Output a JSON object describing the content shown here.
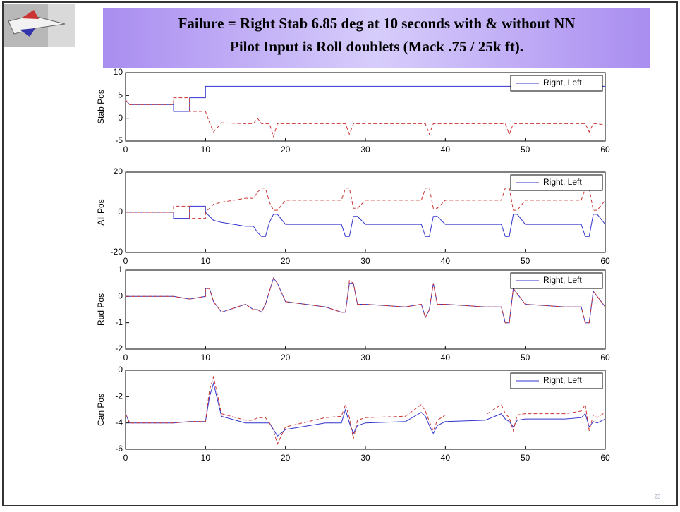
{
  "slide": {
    "title": [
      "Failure = Right Stab 6.85 deg at 10 seconds with & without NN",
      "Pilot Input is Roll doublets (Mack .75 / 25k ft)."
    ],
    "page_number": "23"
  },
  "chart_data": [
    {
      "type": "line",
      "ylabel": "Stab Pos",
      "xlim": [
        0,
        60
      ],
      "ylim": [
        -5,
        10
      ],
      "xticks": [
        0,
        10,
        20,
        30,
        40,
        50,
        60
      ],
      "yticks": [
        -5,
        0,
        5,
        10
      ],
      "legend": "upper right",
      "x": [
        0,
        0.5,
        6,
        6,
        8,
        8,
        10,
        10,
        10.5,
        11,
        12,
        15,
        16,
        16.5,
        17,
        17.5,
        18,
        18.5,
        19,
        20,
        25,
        27,
        27.5,
        28,
        28.5,
        29,
        30,
        35,
        37,
        37.5,
        38,
        38.5,
        39,
        40,
        45,
        47,
        47.5,
        48,
        48.5,
        49,
        50,
        55,
        57,
        57.5,
        58,
        58.5,
        59,
        60
      ],
      "series": [
        {
          "name": "Right, Left",
          "color": "#3333cc",
          "dashed": false,
          "values": [
            4,
            3,
            3,
            1.5,
            1.5,
            4.5,
            4.5,
            7,
            7,
            7,
            7,
            7,
            7,
            7,
            7,
            7,
            7,
            7,
            7,
            7,
            7,
            7,
            7,
            7,
            7,
            7,
            7,
            7,
            7,
            7,
            7,
            7,
            7,
            7,
            7,
            7,
            7,
            7,
            7,
            7,
            7,
            7,
            7,
            7,
            7,
            7,
            7,
            7
          ]
        },
        {
          "color": "#cc3333",
          "dashed": true,
          "values": [
            4,
            3,
            3,
            4.5,
            4.5,
            1.5,
            1.5,
            1.5,
            -1,
            -3,
            -1,
            -1.2,
            -1.2,
            0,
            -1.2,
            -1.2,
            -1.2,
            -4,
            -1.2,
            -1.2,
            -1.2,
            -1.2,
            -1.2,
            -3.5,
            -1.2,
            -1.2,
            -1.2,
            -1.2,
            -1.2,
            -1.2,
            -3.5,
            -1.2,
            -1.2,
            -1.2,
            -1.2,
            -1.2,
            -1.2,
            -3.5,
            -1.2,
            -1.2,
            -1.2,
            -1.2,
            -1.2,
            -1.2,
            -3,
            -1.2,
            -1.2,
            -1.5
          ]
        }
      ]
    },
    {
      "type": "line",
      "ylabel": "Ail Pos",
      "xlim": [
        0,
        60
      ],
      "ylim": [
        -20,
        20
      ],
      "xticks": [
        0,
        10,
        20,
        30,
        40,
        50,
        60
      ],
      "yticks": [
        -20,
        0,
        20
      ],
      "legend": "upper right",
      "x": [
        0,
        0.5,
        6,
        6,
        8,
        8,
        10,
        10,
        10.5,
        11,
        12,
        15,
        16,
        16.5,
        17,
        17.5,
        18,
        18.5,
        19,
        20,
        25,
        27,
        27.5,
        28,
        28.5,
        29,
        30,
        35,
        37,
        37.5,
        38,
        38.5,
        39,
        40,
        45,
        47,
        47.5,
        48,
        48.5,
        49,
        50,
        55,
        57,
        57.5,
        58,
        58.5,
        59,
        60
      ],
      "series": [
        {
          "name": "Right, Left",
          "color": "#3333cc",
          "dashed": false,
          "values": [
            0,
            0,
            0,
            -3,
            -3,
            3,
            3,
            0,
            -2,
            -4,
            -5,
            -7,
            -7,
            -10,
            -12,
            -12,
            -5,
            -1,
            -1,
            -6,
            -6,
            -6,
            -12,
            -12,
            -2,
            -2,
            -6,
            -6,
            -6,
            -12,
            -12,
            -2,
            -2,
            -6,
            -6,
            -6,
            -12,
            -12,
            -1,
            -1,
            -6,
            -6,
            -6,
            -12,
            -12,
            -1,
            -1,
            -6
          ]
        },
        {
          "color": "#cc3333",
          "dashed": true,
          "values": [
            0,
            0,
            0,
            3,
            3,
            -3,
            -3,
            0,
            2,
            4,
            5,
            7,
            7,
            10,
            12,
            12,
            5,
            1,
            1,
            6,
            6,
            6,
            12,
            12,
            2,
            2,
            6,
            6,
            6,
            12,
            12,
            2,
            2,
            6,
            6,
            6,
            12,
            12,
            1,
            1,
            6,
            6,
            6,
            12,
            12,
            1,
            1,
            6
          ]
        }
      ]
    },
    {
      "type": "line",
      "ylabel": "Rud Pos",
      "xlim": [
        0,
        60
      ],
      "ylim": [
        -2,
        1
      ],
      "xticks": [
        0,
        10,
        20,
        30,
        40,
        50,
        60
      ],
      "yticks": [
        -2,
        -1,
        0,
        1
      ],
      "legend": "upper right",
      "x": [
        0,
        0.5,
        6,
        6,
        8,
        8,
        10,
        10,
        10.5,
        11,
        12,
        15,
        16,
        16.5,
        17,
        17.5,
        18,
        18.5,
        19,
        20,
        25,
        27,
        27.5,
        28,
        28.5,
        29,
        30,
        35,
        37,
        37.5,
        38,
        38.5,
        39,
        40,
        45,
        47,
        47.5,
        48,
        48.5,
        49,
        50,
        55,
        57,
        57.5,
        58,
        58.5,
        59,
        60
      ],
      "series": [
        {
          "name": "Right, Left",
          "color": "#3333cc",
          "dashed": false,
          "values": [
            0,
            0,
            0,
            0,
            -0.1,
            -0.1,
            0,
            0.3,
            0.3,
            -0.2,
            -0.6,
            -0.3,
            -0.5,
            -0.5,
            -0.6,
            -0.3,
            0.2,
            0.7,
            0.5,
            -0.2,
            -0.4,
            -0.6,
            -0.6,
            0.5,
            0.5,
            -0.3,
            -0.3,
            -0.4,
            -0.3,
            -0.8,
            -0.5,
            0.5,
            -0.3,
            -0.3,
            -0.4,
            -0.4,
            -1,
            -1,
            0.3,
            0.1,
            -0.3,
            -0.4,
            -0.4,
            -1,
            -1,
            0.2,
            0,
            -0.4
          ]
        },
        {
          "color": "#cc3333",
          "dashed": true,
          "values": [
            0,
            0,
            0,
            0,
            -0.1,
            -0.1,
            0,
            0.3,
            0.3,
            -0.2,
            -0.6,
            -0.3,
            -0.5,
            -0.5,
            -0.6,
            -0.3,
            0.2,
            0.7,
            0.5,
            -0.2,
            -0.4,
            -0.6,
            -0.6,
            0.6,
            0.5,
            -0.3,
            -0.3,
            -0.4,
            -0.3,
            -0.8,
            -0.5,
            0.5,
            -0.3,
            -0.3,
            -0.4,
            -0.4,
            -1,
            -1,
            0.3,
            0.1,
            -0.3,
            -0.4,
            -0.4,
            -1,
            -1,
            0.2,
            0,
            -0.4
          ]
        }
      ]
    },
    {
      "type": "line",
      "ylabel": "Can Pos",
      "xlim": [
        0,
        60
      ],
      "ylim": [
        -6,
        0
      ],
      "xticks": [
        0,
        10,
        20,
        30,
        40,
        50,
        60
      ],
      "yticks": [
        -6,
        -4,
        -2,
        0
      ],
      "legend": "upper right",
      "x": [
        0,
        0.5,
        6,
        6,
        8,
        8,
        10,
        10,
        10.5,
        11,
        12,
        15,
        16,
        16.5,
        17,
        17.5,
        18,
        18.5,
        19,
        20,
        25,
        27,
        27.5,
        28,
        28.5,
        29,
        30,
        35,
        37,
        37.5,
        38,
        38.5,
        39,
        40,
        45,
        47,
        47.5,
        48,
        48.5,
        49,
        50,
        55,
        57,
        57.5,
        58,
        58.5,
        59,
        60
      ],
      "series": [
        {
          "name": "Right, Left",
          "color": "#3333cc",
          "dashed": false,
          "values": [
            -3.3,
            -4,
            -4,
            -4,
            -3.9,
            -3.9,
            -3.9,
            -3.9,
            -2,
            -1,
            -3.5,
            -4,
            -4,
            -4,
            -4,
            -4,
            -4,
            -4.5,
            -5,
            -4.5,
            -4,
            -4,
            -3,
            -4,
            -4.8,
            -4.2,
            -4,
            -3.9,
            -3.2,
            -3.5,
            -4.2,
            -4.8,
            -4.2,
            -3.9,
            -3.8,
            -3.3,
            -3.7,
            -3.9,
            -4.3,
            -3.8,
            -3.7,
            -3.7,
            -3.6,
            -3.3,
            -4.3,
            -3.9,
            -4,
            -3.7
          ]
        },
        {
          "color": "#cc3333",
          "dashed": true,
          "values": [
            -3.3,
            -4,
            -4,
            -4,
            -3.9,
            -3.9,
            -3.9,
            -3.9,
            -1.5,
            -0.5,
            -3.3,
            -3.8,
            -3.8,
            -3.6,
            -3.6,
            -3.6,
            -4,
            -4.6,
            -5.6,
            -4.3,
            -3.6,
            -3.5,
            -2.6,
            -3.6,
            -5.2,
            -3.8,
            -3.6,
            -3.5,
            -2.6,
            -3.1,
            -3.9,
            -4.6,
            -3.8,
            -3.4,
            -3.4,
            -2.6,
            -3.3,
            -3.6,
            -4.6,
            -3.4,
            -3.3,
            -3.3,
            -3.1,
            -2.6,
            -4.6,
            -3.4,
            -3.6,
            -3.2
          ]
        }
      ]
    }
  ]
}
